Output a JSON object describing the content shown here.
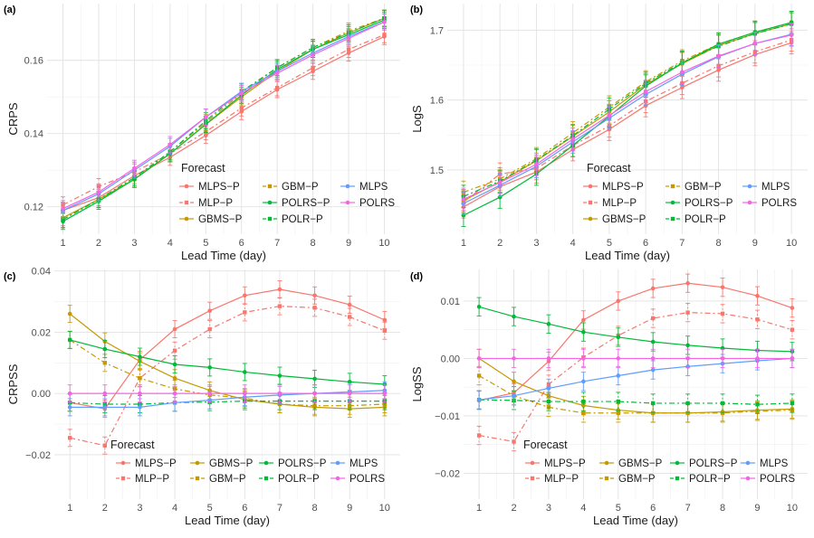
{
  "palette": {
    "MLPS-P": "#F8766D",
    "MLP-P": "#F8766D",
    "GBMS-P": "#C49A00",
    "GBM-P": "#C49A00",
    "POLRS-P": "#00BA38",
    "POLR-P": "#00BA38",
    "MLPS": "#619CFF",
    "POLRS": "#F564E3"
  },
  "chart_data": [
    {
      "panel": "(a)",
      "type": "line",
      "ylabel": "CRPS",
      "xlabel": "Lead Time (day)",
      "x": [
        1,
        2,
        3,
        4,
        5,
        6,
        7,
        8,
        9,
        10
      ],
      "xticks": [
        "1",
        "2",
        "3",
        "4",
        "5",
        "6",
        "7",
        "8",
        "9",
        "10"
      ],
      "ylim": [
        0.1125,
        0.1755
      ],
      "yticks": [
        0.12,
        0.14,
        0.16
      ],
      "ytick_labels": [
        "0.12",
        "0.14",
        "0.16"
      ],
      "errbar": 0.0022,
      "legend": {
        "title": "Forecast",
        "position": "bottom-right",
        "columns": [
          [
            "MLPS-P",
            "MLP-P",
            "GBMS-P"
          ],
          [
            "GBM-P",
            "POLRS-P",
            "POLR-P"
          ],
          [
            "MLPS",
            "POLRS"
          ]
        ]
      },
      "series": [
        {
          "name": "MLPS-P",
          "dash": "solid",
          "values": [
            0.119,
            0.1225,
            0.1285,
            0.1335,
            0.1395,
            0.146,
            0.152,
            0.157,
            0.162,
            0.1665
          ]
        },
        {
          "name": "MLP-P",
          "dash": "dashed",
          "values": [
            0.1205,
            0.1255,
            0.1295,
            0.1345,
            0.1405,
            0.147,
            0.1525,
            0.158,
            0.163,
            0.167
          ]
        },
        {
          "name": "GBMS-P",
          "dash": "solid",
          "values": [
            0.117,
            0.122,
            0.1275,
            0.1345,
            0.1425,
            0.15,
            0.157,
            0.163,
            0.1675,
            0.1715
          ]
        },
        {
          "name": "GBM-P",
          "dash": "dashed",
          "values": [
            0.1165,
            0.122,
            0.1275,
            0.135,
            0.143,
            0.151,
            0.158,
            0.1635,
            0.168,
            0.1715
          ]
        },
        {
          "name": "POLRS-P",
          "dash": "solid",
          "values": [
            0.116,
            0.1215,
            0.1275,
            0.1345,
            0.1425,
            0.1505,
            0.1575,
            0.163,
            0.167,
            0.171
          ]
        },
        {
          "name": "POLR-P",
          "dash": "dashed",
          "values": [
            0.1165,
            0.122,
            0.128,
            0.135,
            0.1435,
            0.1515,
            0.158,
            0.1635,
            0.1675,
            0.1715
          ]
        },
        {
          "name": "MLPS",
          "dash": "solid",
          "values": [
            0.119,
            0.1235,
            0.13,
            0.1365,
            0.1445,
            0.1515,
            0.157,
            0.162,
            0.1665,
            0.1705
          ]
        },
        {
          "name": "POLRS",
          "dash": "solid",
          "values": [
            0.1195,
            0.124,
            0.1305,
            0.137,
            0.1445,
            0.151,
            0.1565,
            0.1615,
            0.166,
            0.1705
          ]
        }
      ]
    },
    {
      "panel": "(b)",
      "type": "line",
      "ylabel": "LogS",
      "xlabel": "Lead Time (day)",
      "x": [
        1,
        2,
        3,
        4,
        5,
        6,
        7,
        8,
        9,
        10
      ],
      "xticks": [
        "1",
        "2",
        "3",
        "4",
        "5",
        "6",
        "7",
        "8",
        "9",
        "10"
      ],
      "ylim": [
        1.408,
        1.738
      ],
      "yticks": [
        1.5,
        1.6,
        1.7
      ],
      "ytick_labels": [
        "1.5",
        "1.6",
        "1.7"
      ],
      "errbar": 0.016,
      "legend": {
        "title": "Forecast",
        "position": "bottom-right",
        "columns": [
          [
            "MLPS-P",
            "MLP-P",
            "GBMS-P"
          ],
          [
            "GBM-P",
            "POLRS-P",
            "POLR-P"
          ],
          [
            "MLPS",
            "POLRS"
          ]
        ]
      },
      "series": [
        {
          "name": "MLPS-P",
          "dash": "solid",
          "values": [
            1.447,
            1.476,
            1.497,
            1.529,
            1.558,
            1.592,
            1.618,
            1.643,
            1.665,
            1.682
          ]
        },
        {
          "name": "MLP-P",
          "dash": "dashed",
          "values": [
            1.454,
            1.494,
            1.502,
            1.535,
            1.563,
            1.598,
            1.624,
            1.649,
            1.669,
            1.686
          ]
        },
        {
          "name": "GBMS-P",
          "dash": "solid",
          "values": [
            1.456,
            1.483,
            1.513,
            1.548,
            1.583,
            1.622,
            1.652,
            1.678,
            1.695,
            1.709
          ]
        },
        {
          "name": "GBM-P",
          "dash": "dashed",
          "values": [
            1.468,
            1.487,
            1.516,
            1.553,
            1.59,
            1.626,
            1.656,
            1.68,
            1.697,
            1.711
          ]
        },
        {
          "name": "POLRS-P",
          "dash": "solid",
          "values": [
            1.435,
            1.461,
            1.494,
            1.535,
            1.577,
            1.62,
            1.653,
            1.68,
            1.697,
            1.711
          ]
        },
        {
          "name": "POLR-P",
          "dash": "dashed",
          "values": [
            1.462,
            1.484,
            1.514,
            1.549,
            1.587,
            1.624,
            1.654,
            1.677,
            1.695,
            1.709
          ]
        },
        {
          "name": "MLPS",
          "dash": "solid",
          "values": [
            1.452,
            1.478,
            1.505,
            1.54,
            1.574,
            1.608,
            1.637,
            1.662,
            1.681,
            1.694
          ]
        },
        {
          "name": "POLRS",
          "dash": "solid",
          "values": [
            1.458,
            1.482,
            1.508,
            1.544,
            1.578,
            1.612,
            1.64,
            1.663,
            1.681,
            1.693
          ]
        }
      ]
    },
    {
      "panel": "(c)",
      "type": "line",
      "ylabel": "CRPSS",
      "xlabel": "Lead Time (day)",
      "x": [
        1,
        2,
        3,
        4,
        5,
        6,
        7,
        8,
        9,
        10
      ],
      "xticks": [
        "1",
        "2",
        "3",
        "4",
        "5",
        "6",
        "7",
        "8",
        "9",
        "10"
      ],
      "ylim": [
        -0.0345,
        0.0405
      ],
      "yticks": [
        -0.02,
        0.0,
        0.02,
        0.04
      ],
      "ytick_labels": [
        "-0.02",
        "0.00",
        "0.02",
        "0.04"
      ],
      "errbar": 0.0028,
      "legend": {
        "title": "Forecast",
        "position": "bottom-center",
        "columns": [
          [
            "MLPS-P",
            "MLP-P"
          ],
          [
            "GBMS-P",
            "GBM-P"
          ],
          [
            "POLRS-P",
            "POLR-P"
          ],
          [
            "MLPS",
            "POLRS"
          ]
        ]
      },
      "series": [
        {
          "name": "MLPS-P",
          "dash": "solid",
          "values": [
            -0.003,
            -0.005,
            0.011,
            0.021,
            0.027,
            0.032,
            0.034,
            0.032,
            0.029,
            0.024
          ]
        },
        {
          "name": "MLP-P",
          "dash": "dashed",
          "values": [
            -0.0145,
            -0.017,
            0.005,
            0.014,
            0.021,
            0.0265,
            0.0285,
            0.028,
            0.025,
            0.0205
          ]
        },
        {
          "name": "GBMS-P",
          "dash": "solid",
          "values": [
            0.026,
            0.017,
            0.0105,
            0.005,
            0.001,
            -0.002,
            -0.0035,
            -0.0045,
            -0.005,
            -0.0045
          ]
        },
        {
          "name": "GBM-P",
          "dash": "dashed",
          "values": [
            0.0175,
            0.01,
            0.005,
            0.0015,
            -0.0005,
            -0.0015,
            -0.0035,
            -0.004,
            -0.004,
            -0.0035
          ]
        },
        {
          "name": "POLRS-P",
          "dash": "solid",
          "values": [
            0.0175,
            0.0145,
            0.012,
            0.0095,
            0.0085,
            0.007,
            0.0058,
            0.0048,
            0.0038,
            0.003
          ]
        },
        {
          "name": "POLR-P",
          "dash": "dashed",
          "values": [
            -0.003,
            -0.0035,
            -0.0035,
            -0.003,
            -0.0028,
            -0.0025,
            -0.0025,
            -0.0025,
            -0.0025,
            -0.0025
          ]
        },
        {
          "name": "MLPS",
          "dash": "solid",
          "values": [
            -0.0045,
            -0.0045,
            -0.0045,
            -0.003,
            -0.0022,
            -0.0012,
            -0.0005,
            0.0,
            0.0005,
            0.001
          ]
        },
        {
          "name": "POLRS",
          "dash": "solid",
          "values": [
            0.0,
            0.0,
            0.0,
            0.0,
            0.0,
            0.0,
            0.0,
            0.0,
            0.0,
            0.0
          ]
        }
      ]
    },
    {
      "panel": "(d)",
      "type": "line",
      "ylabel": "LogSS",
      "xlabel": "Lead Time (day)",
      "x": [
        1,
        2,
        3,
        4,
        5,
        6,
        7,
        8,
        9,
        10
      ],
      "xticks": [
        "1",
        "2",
        "3",
        "4",
        "5",
        "6",
        "7",
        "8",
        "9",
        "10"
      ],
      "ylim": [
        -0.0245,
        0.0155
      ],
      "yticks": [
        -0.02,
        -0.01,
        0.0,
        0.01
      ],
      "ytick_labels": [
        "-0.02",
        "-0.01",
        "0.00",
        "0.01"
      ],
      "errbar": 0.0016,
      "legend": {
        "title": "Forecast",
        "position": "bottom-center",
        "columns": [
          [
            "MLPS-P",
            "MLP-P"
          ],
          [
            "GBMS-P",
            "GBM-P"
          ],
          [
            "POLRS-P",
            "POLR-P"
          ],
          [
            "MLPS",
            "POLRS"
          ]
        ]
      },
      "series": [
        {
          "name": "MLPS-P",
          "dash": "solid",
          "values": [
            -0.0073,
            -0.006,
            -0.0005,
            0.0067,
            0.01,
            0.0122,
            0.0131,
            0.0124,
            0.0109,
            0.0088
          ]
        },
        {
          "name": "MLP-P",
          "dash": "dashed",
          "values": [
            -0.0134,
            -0.0145,
            -0.0045,
            0.0002,
            0.004,
            0.007,
            0.008,
            0.0078,
            0.0068,
            0.005
          ]
        },
        {
          "name": "GBMS-P",
          "dash": "solid",
          "values": [
            0.0,
            -0.004,
            -0.0065,
            -0.0082,
            -0.009,
            -0.0095,
            -0.0095,
            -0.0093,
            -0.009,
            -0.0088
          ]
        },
        {
          "name": "GBM-P",
          "dash": "dashed",
          "values": [
            -0.003,
            -0.0065,
            -0.0085,
            -0.0095,
            -0.0095,
            -0.0095,
            -0.0095,
            -0.0095,
            -0.0092,
            -0.009
          ]
        },
        {
          "name": "POLRS-P",
          "dash": "solid",
          "values": [
            0.009,
            0.0073,
            0.006,
            0.0046,
            0.0037,
            0.0029,
            0.0023,
            0.0018,
            0.0014,
            0.0012
          ]
        },
        {
          "name": "POLR-P",
          "dash": "dashed",
          "values": [
            -0.0072,
            -0.0073,
            -0.0075,
            -0.0075,
            -0.0075,
            -0.0078,
            -0.0078,
            -0.0078,
            -0.008,
            -0.0078
          ]
        },
        {
          "name": "MLPS",
          "dash": "solid",
          "values": [
            -0.0072,
            -0.0065,
            -0.0052,
            -0.004,
            -0.003,
            -0.002,
            -0.0014,
            -0.0009,
            -0.0004,
            0.0
          ]
        },
        {
          "name": "POLRS",
          "dash": "solid",
          "values": [
            0.0,
            0.0,
            0.0,
            0.0,
            0.0,
            0.0,
            0.0,
            0.0,
            0.0,
            0.0
          ]
        }
      ]
    }
  ]
}
